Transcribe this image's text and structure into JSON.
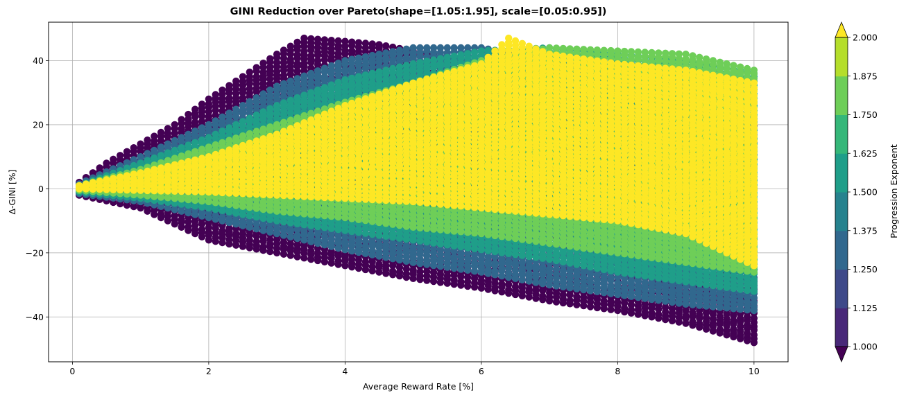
{
  "chart_data": {
    "type": "scatter",
    "title": "GINI Reduction over Pareto(shape=[1.05:1.95], scale=[0.05:0.95])",
    "xlabel": "Average Reward Rate [%]",
    "ylabel": "Δ-GINI [%]",
    "xlim": [
      -0.35,
      10.5
    ],
    "ylim": [
      -54,
      52
    ],
    "xticks": [
      0,
      2,
      4,
      6,
      8,
      10
    ],
    "xtick_labels": [
      "0",
      "2",
      "4",
      "6",
      "8",
      "10"
    ],
    "yticks": [
      -40,
      -20,
      0,
      20,
      40
    ],
    "ytick_labels": [
      "−40",
      "−20",
      "0",
      "20",
      "40"
    ],
    "grid": true,
    "x_values": {
      "start": 0.1,
      "step": 0.1,
      "count": 100
    },
    "color_field": "Progression Exponent",
    "series": [
      {
        "exponent": 1.0,
        "upper_envelope": [
          [
            0.1,
            2
          ],
          [
            0.5,
            8
          ],
          [
            1.0,
            14
          ],
          [
            1.5,
            20
          ],
          [
            2.0,
            28
          ],
          [
            2.5,
            35
          ],
          [
            3.0,
            42
          ],
          [
            3.4,
            47
          ],
          [
            4.0,
            46
          ],
          [
            4.5,
            45
          ],
          [
            5.0,
            43
          ],
          [
            5.5,
            41
          ],
          [
            6.0,
            39
          ],
          [
            7.0,
            34
          ],
          [
            8.0,
            29
          ],
          [
            9.0,
            25
          ],
          [
            10.0,
            21
          ]
        ],
        "lower_envelope": [
          [
            0.1,
            -2
          ],
          [
            1.0,
            -6
          ],
          [
            2.0,
            -16
          ],
          [
            3.0,
            -20
          ],
          [
            4.0,
            -24
          ],
          [
            5.0,
            -28
          ],
          [
            6.0,
            -31
          ],
          [
            7.0,
            -35
          ],
          [
            8.0,
            -38
          ],
          [
            9.0,
            -42
          ],
          [
            10.0,
            -48
          ]
        ]
      },
      {
        "exponent": 1.25,
        "upper_envelope": [
          [
            0.1,
            1.5
          ],
          [
            1.0,
            10
          ],
          [
            2.0,
            20
          ],
          [
            3.0,
            32
          ],
          [
            4.0,
            40
          ],
          [
            5.0,
            44
          ],
          [
            6.0,
            44
          ],
          [
            7.0,
            40
          ],
          [
            8.0,
            37
          ],
          [
            9.0,
            32
          ],
          [
            10.0,
            28
          ]
        ],
        "lower_envelope": [
          [
            0.1,
            -1.5
          ],
          [
            1.0,
            -4
          ],
          [
            2.0,
            -9
          ],
          [
            3.0,
            -14
          ],
          [
            4.0,
            -19
          ],
          [
            5.0,
            -23
          ],
          [
            6.0,
            -26
          ],
          [
            7.0,
            -30
          ],
          [
            8.0,
            -33
          ],
          [
            9.0,
            -36
          ],
          [
            10.0,
            -38
          ]
        ]
      },
      {
        "exponent": 1.5,
        "upper_envelope": [
          [
            0.1,
            1
          ],
          [
            1.0,
            8
          ],
          [
            2.0,
            16
          ],
          [
            3.0,
            26
          ],
          [
            4.0,
            34
          ],
          [
            5.0,
            39
          ],
          [
            6.0,
            43
          ],
          [
            7.0,
            44
          ],
          [
            8.0,
            42
          ],
          [
            9.0,
            40
          ],
          [
            10.0,
            36
          ]
        ],
        "lower_envelope": [
          [
            0.1,
            -1
          ],
          [
            1.0,
            -3
          ],
          [
            2.0,
            -6
          ],
          [
            3.0,
            -10
          ],
          [
            4.0,
            -13
          ],
          [
            5.0,
            -16
          ],
          [
            6.0,
            -19
          ],
          [
            7.0,
            -22
          ],
          [
            8.0,
            -26
          ],
          [
            9.0,
            -29
          ],
          [
            10.0,
            -32
          ]
        ]
      },
      {
        "exponent": 1.75,
        "upper_envelope": [
          [
            0.1,
            1
          ],
          [
            1.0,
            6
          ],
          [
            2.0,
            13
          ],
          [
            3.0,
            20
          ],
          [
            4.0,
            27
          ],
          [
            5.0,
            33
          ],
          [
            6.0,
            40
          ],
          [
            7.0,
            44
          ],
          [
            8.0,
            43
          ],
          [
            9.0,
            42
          ],
          [
            10.0,
            37
          ]
        ],
        "lower_envelope": [
          [
            0.1,
            -0.5
          ],
          [
            1.0,
            -2
          ],
          [
            2.0,
            -4
          ],
          [
            3.0,
            -7
          ],
          [
            4.0,
            -9
          ],
          [
            5.0,
            -12
          ],
          [
            6.0,
            -14
          ],
          [
            7.0,
            -17
          ],
          [
            8.0,
            -20
          ],
          [
            9.0,
            -23
          ],
          [
            10.0,
            -26
          ]
        ]
      },
      {
        "exponent": 2.0,
        "upper_envelope": [
          [
            0.1,
            1
          ],
          [
            1.0,
            5
          ],
          [
            2.0,
            10
          ],
          [
            3.0,
            17
          ],
          [
            4.0,
            26
          ],
          [
            5.0,
            33
          ],
          [
            6.0,
            39
          ],
          [
            6.4,
            47
          ],
          [
            7.0,
            42
          ],
          [
            8.0,
            39
          ],
          [
            9.0,
            37
          ],
          [
            10.0,
            33
          ]
        ],
        "lower_envelope": [
          [
            0.1,
            0
          ],
          [
            1.0,
            -0.5
          ],
          [
            2.0,
            -1
          ],
          [
            3.0,
            -2
          ],
          [
            4.0,
            -3
          ],
          [
            5.0,
            -4
          ],
          [
            6.0,
            -6
          ],
          [
            7.0,
            -8
          ],
          [
            8.0,
            -10
          ],
          [
            9.0,
            -14
          ],
          [
            10.0,
            -24
          ]
        ]
      }
    ],
    "colorbar": {
      "label": "Progression Exponent",
      "min": 1.0,
      "max": 2.0,
      "ticks": [
        1.0,
        1.125,
        1.25,
        1.375,
        1.5,
        1.625,
        1.75,
        1.875,
        2.0
      ],
      "tick_labels": [
        "1.000",
        "1.125",
        "1.250",
        "1.375",
        "1.500",
        "1.625",
        "1.750",
        "1.875",
        "2.000"
      ],
      "colors": [
        "#440154",
        "#482878",
        "#3e4989",
        "#31688e",
        "#26828e",
        "#1f9e89",
        "#35b779",
        "#6ece58",
        "#b5de2b",
        "#fde725"
      ],
      "extend": "both"
    }
  }
}
